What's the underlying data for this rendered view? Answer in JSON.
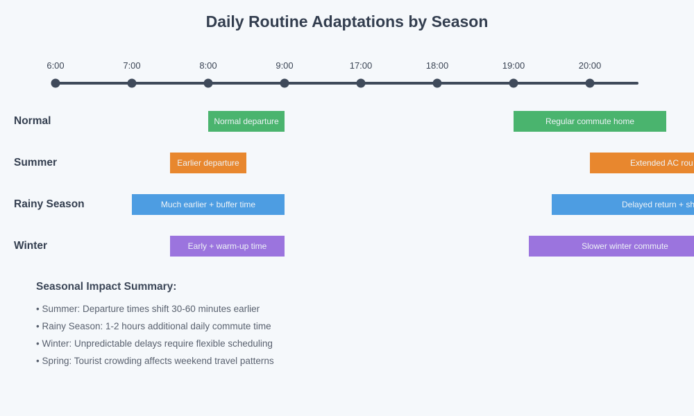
{
  "title": "Daily Routine Adaptations by Season",
  "colors": {
    "background": "#f5f8fb",
    "axis": "#3f4a5a",
    "heading_text": "#333e4f",
    "body_text": "#59616f",
    "normal_green": "#4ab46e",
    "summer_orange": "#e8872e",
    "rainy_blue": "#4d9de2",
    "winter_purple": "#9b74de"
  },
  "chart_data": {
    "type": "bar",
    "subtype": "horizontal-timeline-gantt",
    "title": "Daily Routine Adaptations by Season",
    "x_ticks": [
      {
        "label": "6:00"
      },
      {
        "label": "7:00"
      },
      {
        "label": "8:00"
      },
      {
        "label": "9:00"
      },
      {
        "label": "17:00"
      },
      {
        "label": "18:00"
      },
      {
        "label": "19:00"
      },
      {
        "label": "20:00"
      }
    ],
    "axis_note": "single horizontal time axis with dot markers at each tick; axis breaks between 9:00 and 17:00 with equal tick spacing (1 hour per interval)",
    "legend_position": "none",
    "rows": [
      {
        "label": "Normal",
        "color": "#4ab46e",
        "bars": [
          {
            "text": "Normal departure",
            "start": "8:00",
            "end": "9:00",
            "clipped": false
          },
          {
            "text": "Regular commute home",
            "start": "19:00",
            "end": "21:00",
            "clipped": false
          }
        ]
      },
      {
        "label": "Summer",
        "color": "#e8872e",
        "bars": [
          {
            "text": "Earlier departure",
            "start": "7:30",
            "end": "8:30",
            "clipped": false
          },
          {
            "text": "Extended AC rou",
            "start": "20:00",
            "end": "beyond right edge",
            "clipped": true
          }
        ]
      },
      {
        "label": "Rainy Season",
        "color": "#4d9de2",
        "bars": [
          {
            "text": "Much earlier + buffer time",
            "start": "7:00",
            "end": "9:00",
            "clipped": false
          },
          {
            "text": "Delayed return + sh",
            "start": "19:30",
            "end": "beyond right edge",
            "clipped": true
          }
        ]
      },
      {
        "label": "Winter",
        "color": "#9b74de",
        "bars": [
          {
            "text": "Early + warm-up time",
            "start": "7:30",
            "end": "9:00",
            "clipped": false
          },
          {
            "text": "Slower winter commute",
            "start": "19:12",
            "end": "beyond right edge",
            "clipped": true
          }
        ]
      }
    ]
  },
  "summary": {
    "heading": "Seasonal Impact Summary:",
    "items": [
      "• Summer: Departure times shift 30-60 minutes earlier",
      "• Rainy Season: 1-2 hours additional daily commute time",
      "• Winter: Unpredictable delays require flexible scheduling",
      "• Spring: Tourist crowding affects weekend travel patterns"
    ]
  }
}
